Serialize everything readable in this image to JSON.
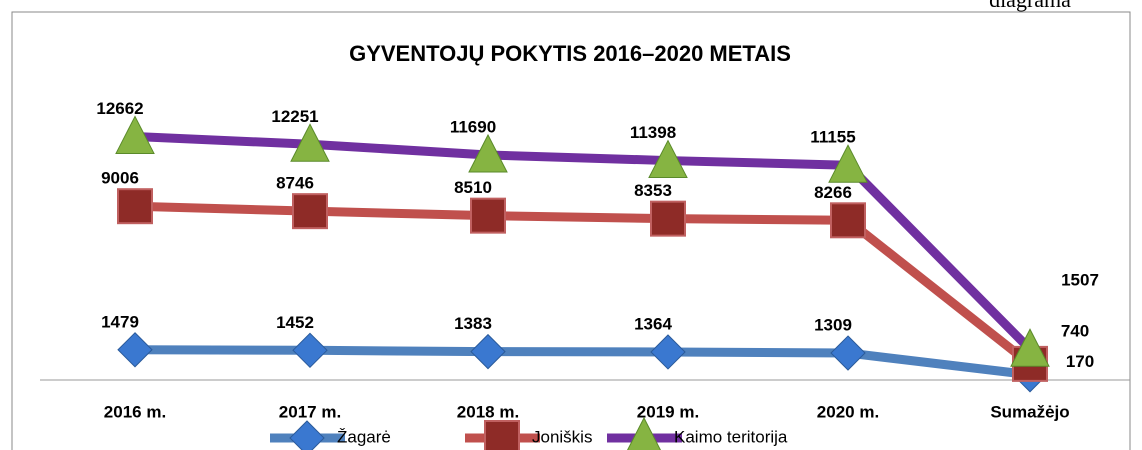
{
  "chart_data": {
    "type": "line",
    "title": "GYVENTOJŲ POKYTIS 2016–2020 METAIS",
    "corner_text": "diagrama",
    "categories": [
      "2016 m.",
      "2017 m.",
      "2018 m.",
      "2019 m.",
      "2020 m.",
      "Sumažėjo"
    ],
    "series": [
      {
        "name": "Žagarė",
        "color": "#4f81bd",
        "marker_color": "#3a78d0",
        "marker": "diamond",
        "values": [
          1479,
          1452,
          1383,
          1364,
          1309,
          170
        ]
      },
      {
        "name": "Joniškis",
        "color": "#c0504d",
        "marker_color": "#8e2b27",
        "marker": "square",
        "values": [
          9006,
          8746,
          8510,
          8353,
          8266,
          740
        ]
      },
      {
        "name": "Kaimo teritorija",
        "color": "#7030a0",
        "marker_color": "#86b442",
        "marker": "triangle",
        "values": [
          12662,
          12251,
          11690,
          11398,
          11155,
          1507
        ]
      }
    ],
    "ylim": [
      0,
      13000
    ],
    "legend": "bottom"
  }
}
